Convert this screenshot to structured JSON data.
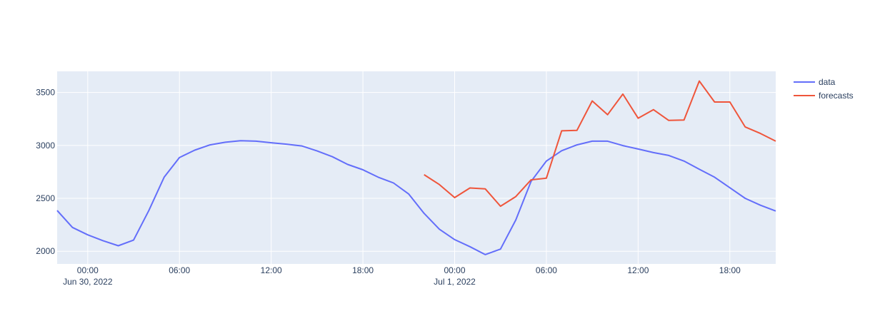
{
  "colors": {
    "plot_bg": "#E5ECF6",
    "grid": "#ffffff",
    "text": "#2a3f5f"
  },
  "chart_data": {
    "type": "line",
    "title": "",
    "xlabel": "",
    "ylabel": "",
    "grid": true,
    "legend": "top-right, outside plot",
    "x_range": [
      "2022-06-29 22:00",
      "2022-07-01 21:00"
    ],
    "y_range": [
      1880,
      3700
    ],
    "y_ticks": [
      2000,
      2500,
      3000,
      3500
    ],
    "x_ticks": [
      {
        "t": "2022-06-30 00:00",
        "label": "00:00",
        "sublabel": "Jun 30, 2022"
      },
      {
        "t": "2022-06-30 06:00",
        "label": "06:00",
        "sublabel": ""
      },
      {
        "t": "2022-06-30 12:00",
        "label": "12:00",
        "sublabel": ""
      },
      {
        "t": "2022-06-30 18:00",
        "label": "18:00",
        "sublabel": ""
      },
      {
        "t": "2022-07-01 00:00",
        "label": "00:00",
        "sublabel": "Jul 1, 2022"
      },
      {
        "t": "2022-07-01 06:00",
        "label": "06:00",
        "sublabel": ""
      },
      {
        "t": "2022-07-01 12:00",
        "label": "12:00",
        "sublabel": ""
      },
      {
        "t": "2022-07-01 18:00",
        "label": "18:00",
        "sublabel": ""
      }
    ],
    "series": [
      {
        "name": "data",
        "color": "#636EFA",
        "x": [
          "2022-06-29 22:00",
          "2022-06-29 23:00",
          "2022-06-30 00:00",
          "2022-06-30 01:00",
          "2022-06-30 02:00",
          "2022-06-30 03:00",
          "2022-06-30 04:00",
          "2022-06-30 05:00",
          "2022-06-30 06:00",
          "2022-06-30 07:00",
          "2022-06-30 08:00",
          "2022-06-30 09:00",
          "2022-06-30 10:00",
          "2022-06-30 11:00",
          "2022-06-30 12:00",
          "2022-06-30 13:00",
          "2022-06-30 14:00",
          "2022-06-30 15:00",
          "2022-06-30 16:00",
          "2022-06-30 17:00",
          "2022-06-30 18:00",
          "2022-06-30 19:00",
          "2022-06-30 20:00",
          "2022-06-30 21:00",
          "2022-06-30 22:00",
          "2022-06-30 23:00",
          "2022-07-01 00:00",
          "2022-07-01 01:00",
          "2022-07-01 02:00",
          "2022-07-01 03:00",
          "2022-07-01 04:00",
          "2022-07-01 05:00",
          "2022-07-01 06:00",
          "2022-07-01 07:00",
          "2022-07-01 08:00",
          "2022-07-01 09:00",
          "2022-07-01 10:00",
          "2022-07-01 11:00",
          "2022-07-01 12:00",
          "2022-07-01 13:00",
          "2022-07-01 14:00",
          "2022-07-01 15:00",
          "2022-07-01 16:00",
          "2022-07-01 17:00",
          "2022-07-01 18:00",
          "2022-07-01 19:00",
          "2022-07-01 20:00",
          "2022-07-01 21:00"
        ],
        "values": [
          2385,
          2225,
          2155,
          2100,
          2052,
          2105,
          2385,
          2700,
          2885,
          2955,
          3005,
          3030,
          3045,
          3040,
          3025,
          3012,
          2995,
          2948,
          2893,
          2820,
          2770,
          2700,
          2645,
          2540,
          2358,
          2208,
          2110,
          2043,
          1968,
          2020,
          2295,
          2660,
          2852,
          2950,
          3005,
          3040,
          3040,
          2998,
          2966,
          2932,
          2905,
          2852,
          2775,
          2700,
          2600,
          2500,
          2435,
          2380
        ]
      },
      {
        "name": "forecasts",
        "color": "#EF553B",
        "x": [
          "2022-06-30 22:00",
          "2022-06-30 23:00",
          "2022-07-01 00:00",
          "2022-07-01 01:00",
          "2022-07-01 02:00",
          "2022-07-01 03:00",
          "2022-07-01 04:00",
          "2022-07-01 05:00",
          "2022-07-01 06:00",
          "2022-07-01 07:00",
          "2022-07-01 08:00",
          "2022-07-01 09:00",
          "2022-07-01 10:00",
          "2022-07-01 11:00",
          "2022-07-01 12:00",
          "2022-07-01 13:00",
          "2022-07-01 14:00",
          "2022-07-01 15:00",
          "2022-07-01 16:00",
          "2022-07-01 17:00",
          "2022-07-01 18:00",
          "2022-07-01 19:00",
          "2022-07-01 20:00",
          "2022-07-01 21:00"
        ],
        "values": [
          2723,
          2630,
          2507,
          2598,
          2590,
          2425,
          2516,
          2675,
          2690,
          3138,
          3142,
          3420,
          3290,
          3485,
          3257,
          3338,
          3236,
          3240,
          3608,
          3410,
          3410,
          3175,
          3113,
          3040
        ]
      }
    ]
  }
}
